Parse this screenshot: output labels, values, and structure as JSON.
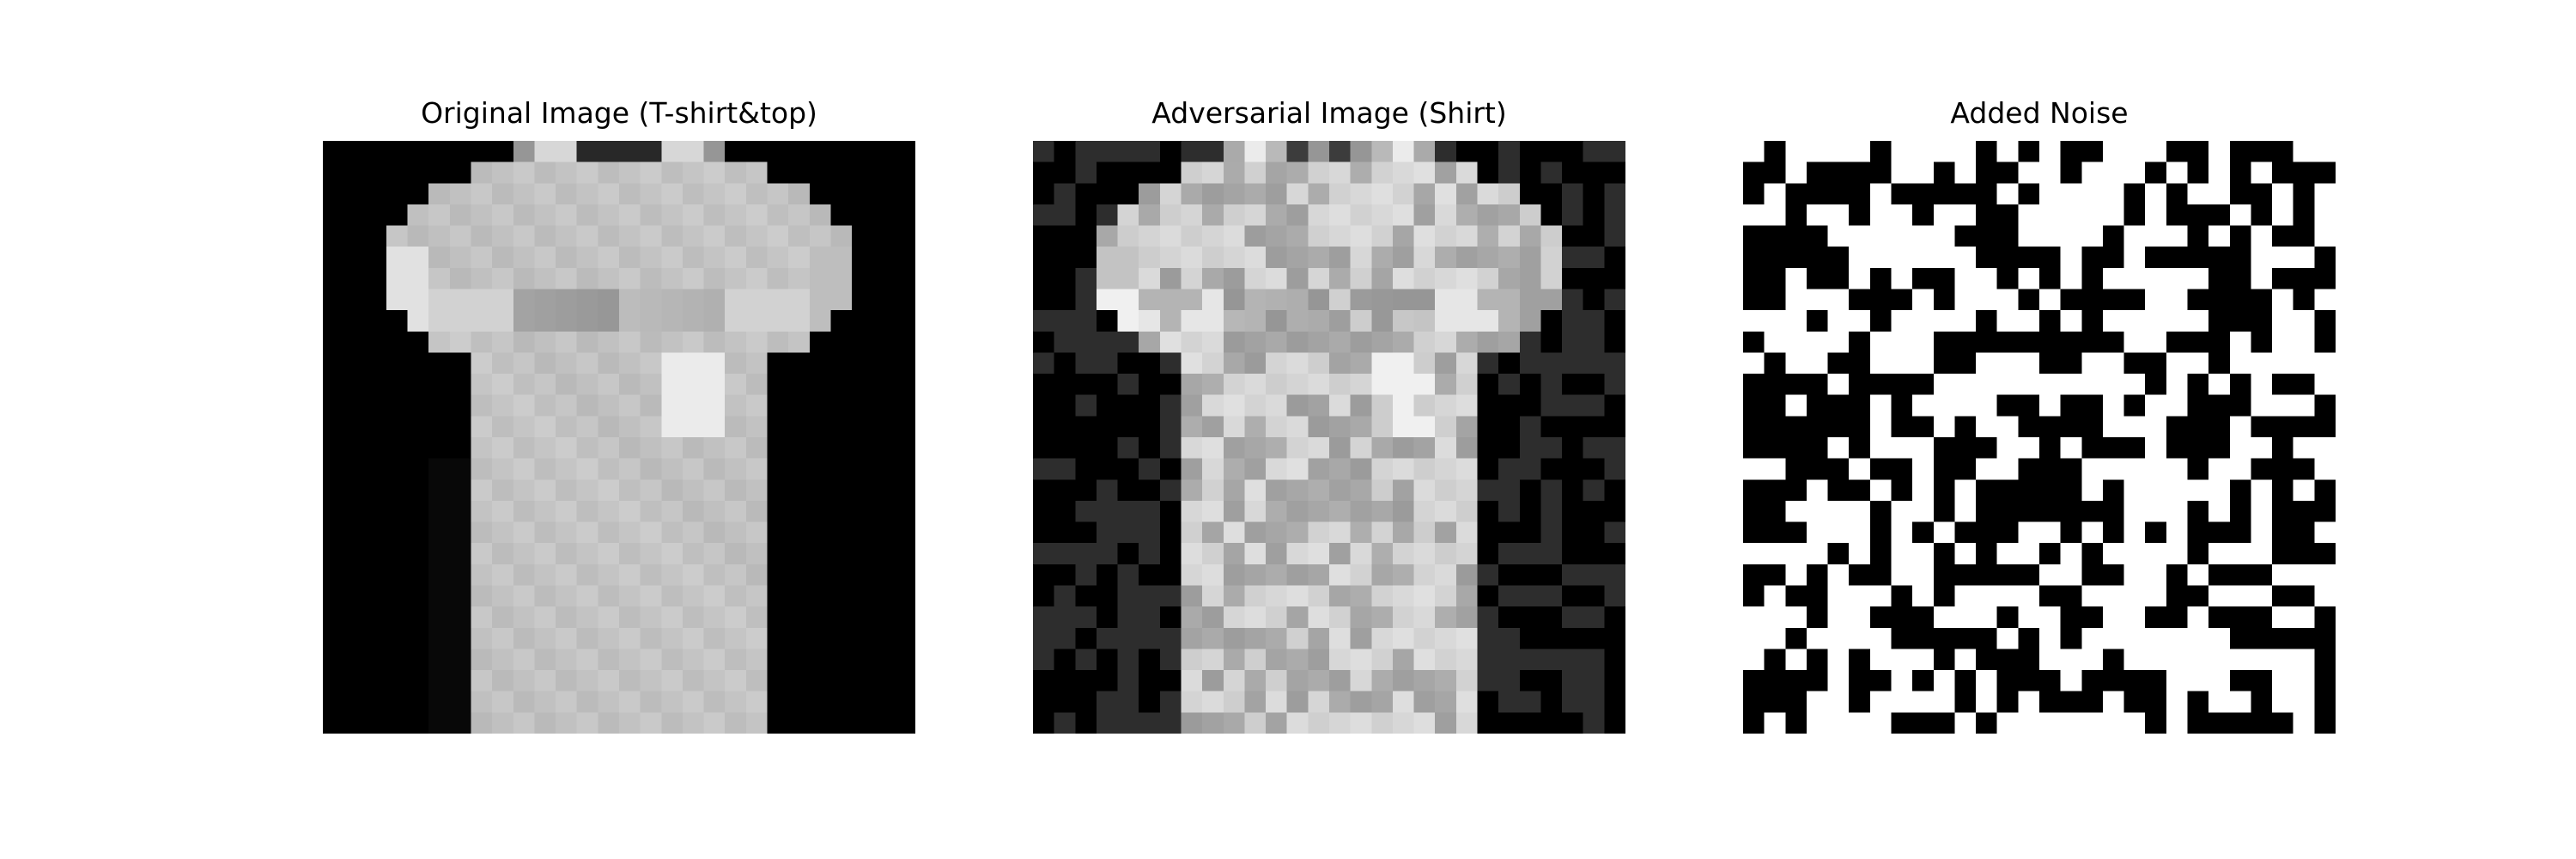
{
  "figure": {
    "panels": [
      {
        "title": "Original Image (T-shirt&top)"
      },
      {
        "title": "Adversarial Image (Shirt)"
      },
      {
        "title": "Added Noise"
      }
    ]
  }
}
